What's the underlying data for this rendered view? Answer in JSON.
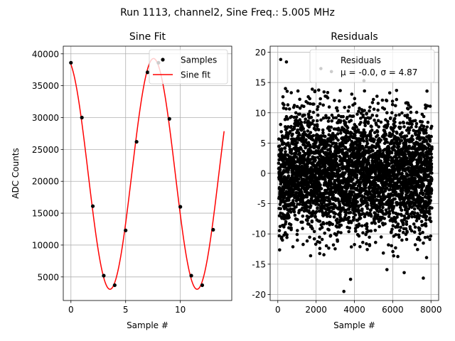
{
  "suptitle": "Run 1113, channel2, Sine Freq.: 5.005 MHz",
  "chart_data": [
    {
      "type": "line",
      "title": "Sine Fit",
      "xlabel": "Sample #",
      "ylabel": "ADC Counts",
      "xlim": [
        -0.7,
        14.7
      ],
      "ylim": [
        1300,
        41200
      ],
      "xticks": [
        0,
        5,
        10
      ],
      "yticks": [
        5000,
        10000,
        15000,
        20000,
        25000,
        30000,
        35000,
        40000
      ],
      "grid": true,
      "legend_position": "top-right",
      "series": [
        {
          "name": "Samples",
          "style": "scatter",
          "color": "#000000",
          "x": [
            0,
            1,
            2,
            3,
            4,
            5,
            6,
            7,
            8,
            9,
            10,
            11,
            12,
            13
          ],
          "y": [
            38600,
            30000,
            16100,
            5200,
            3700,
            12300,
            26200,
            37100,
            38600,
            29800,
            16000,
            5200,
            3700,
            12400
          ]
        },
        {
          "name": "Sine fit",
          "style": "line",
          "color": "#ff0000",
          "model": {
            "offset": 21165,
            "amplitude": 18100,
            "period": 7.96,
            "peak_x": 7.55,
            "x_range": [
              0,
              14
            ]
          }
        }
      ]
    },
    {
      "type": "scatter",
      "title": "Residuals",
      "xlabel": "Sample #",
      "ylabel": "",
      "xlim": [
        -400,
        8400
      ],
      "ylim": [
        -21,
        21
      ],
      "xticks": [
        0,
        2000,
        4000,
        6000,
        8000
      ],
      "yticks": [
        -20,
        -15,
        -10,
        -5,
        0,
        5,
        10,
        15,
        20
      ],
      "grid": true,
      "legend_position": "top-right",
      "legend": {
        "label": "Residuals",
        "stats": "μ = -0.0, σ = 4.87"
      },
      "series": [
        {
          "name": "Residuals",
          "color": "#000000",
          "n_points": 8000,
          "mean": 0.0,
          "std": 4.87
        }
      ],
      "notable_points": [
        {
          "x": 150,
          "y": 18.8
        },
        {
          "x": 450,
          "y": 18.4
        },
        {
          "x": 2250,
          "y": 17.3
        },
        {
          "x": 3450,
          "y": -19.5
        },
        {
          "x": 3800,
          "y": -17.5
        },
        {
          "x": 7600,
          "y": -17.3
        },
        {
          "x": 6600,
          "y": -16.4
        },
        {
          "x": 5700,
          "y": -15.9
        },
        {
          "x": 400,
          "y": 14.0
        },
        {
          "x": 1800,
          "y": 13.9
        },
        {
          "x": 2800,
          "y": 16.8
        },
        {
          "x": 4500,
          "y": 15.3
        }
      ]
    }
  ]
}
